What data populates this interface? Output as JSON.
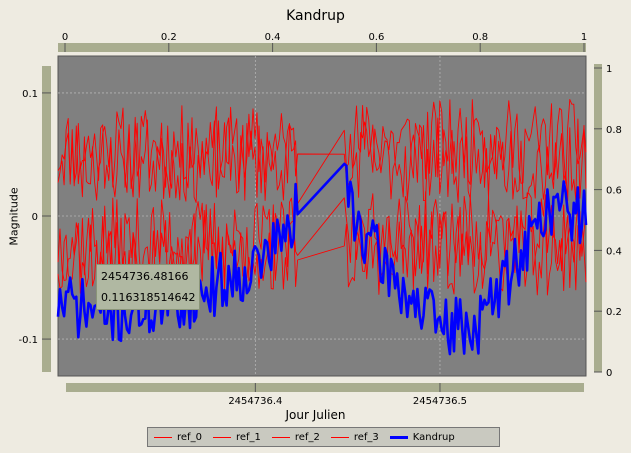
{
  "window": {
    "title": "Kandrup"
  },
  "chart_data": {
    "type": "line",
    "title": "Kandrup",
    "xlabel": "Jour Julien",
    "ylabel": "Magnitude",
    "x_ticks": [
      "2454736.4",
      "2454736.5"
    ],
    "y_ticks": [
      "0.1",
      "0",
      "-0.1"
    ],
    "top_axis_ticks": [
      "0",
      "0.2",
      "0.4",
      "0.6",
      "0.8",
      "1"
    ],
    "right_axis_ticks": [
      "1",
      "0.8",
      "0.6",
      "0.4",
      "0.2",
      "0"
    ],
    "xlim": [
      2454736.2931,
      2454736.5791
    ],
    "ylim": [
      -0.13,
      0.13
    ],
    "grid": true,
    "legend_position": "bottom",
    "colors": {
      "ref": "#ff0000",
      "main": "#0000ff",
      "plot_bg": "#808080",
      "grid": "#b4b4b4"
    },
    "gap": [
      2454736.4238,
      2454736.4473
    ],
    "series": [
      {
        "name": "ref_0",
        "color": "#ff0000",
        "level": 0.055,
        "seed": 11
      },
      {
        "name": "ref_1",
        "color": "#ff0000",
        "level": 0.045,
        "seed": 23
      },
      {
        "name": "ref_2",
        "color": "#ff0000",
        "level": -0.02,
        "seed": 37
      },
      {
        "name": "ref_3",
        "color": "#ff0000",
        "level": -0.03,
        "seed": 53
      },
      {
        "name": "Kandrup",
        "color": "#0000ff",
        "level": null,
        "seed": 71,
        "trend_x": [
          2454736.2931,
          2454736.32,
          2454736.36,
          2454736.4,
          2454736.42,
          2454736.4238,
          2454736.4473,
          2454736.46,
          2454736.48,
          2454736.5,
          2454736.52,
          2454736.54,
          2454736.56,
          2454736.5791
        ],
        "trend_y": [
          -0.07,
          -0.08,
          -0.07,
          -0.04,
          -0.01,
          0.02,
          0.03,
          -0.02,
          -0.06,
          -0.09,
          -0.09,
          -0.04,
          0.01,
          0.0
        ]
      }
    ]
  },
  "tooltip": {
    "line1": "2454736.48166",
    "line2": "0.116318514642"
  }
}
